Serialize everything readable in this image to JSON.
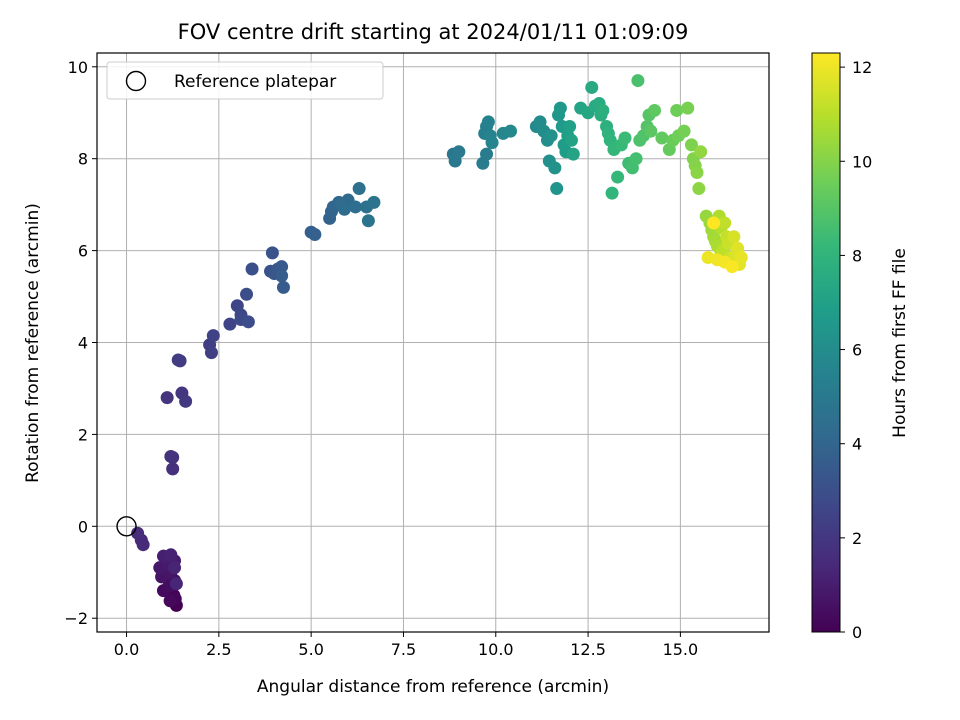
{
  "chart_data": {
    "type": "scatter",
    "title": "FOV centre drift starting at 2024/01/11 01:09:09",
    "xlabel": "Angular distance from reference (arcmin)",
    "ylabel": "Rotation from reference (arcmin)",
    "xlim": [
      -0.8,
      17.4
    ],
    "ylim": [
      -2.3,
      10.3
    ],
    "x_ticks": [
      0.0,
      2.5,
      5.0,
      7.5,
      10.0,
      12.5,
      15.0
    ],
    "x_tick_labels": [
      "0.0",
      "2.5",
      "5.0",
      "7.5",
      "10.0",
      "12.5",
      "15.0"
    ],
    "y_ticks": [
      -2,
      0,
      2,
      4,
      6,
      8,
      10
    ],
    "y_tick_labels": [
      "−2",
      "0",
      "2",
      "4",
      "6",
      "8",
      "10"
    ],
    "grid": true,
    "legend": {
      "position": "upper-left",
      "entries": [
        "Reference platepar"
      ]
    },
    "reference_point": {
      "x": 0.0,
      "y": 0.0
    },
    "colorbar": {
      "label": "Hours from first FF file",
      "range": [
        0,
        12.3
      ],
      "ticks": [
        0,
        2,
        4,
        6,
        8,
        10,
        12
      ],
      "tick_labels": [
        "0",
        "2",
        "4",
        "6",
        "8",
        "10",
        "12"
      ],
      "colormap": "viridis"
    },
    "colormap_stops": [
      "#440154",
      "#482878",
      "#3e4989",
      "#31688e",
      "#26828e",
      "#1f9e89",
      "#35b779",
      "#6ece58",
      "#b5de2b",
      "#fde725"
    ],
    "series": [
      {
        "points": [
          [
            1.35,
            -1.72
          ],
          [
            1.28,
            -1.5
          ],
          [
            1.32,
            -1.58
          ],
          [
            1.18,
            -1.62
          ],
          [
            1.0,
            -1.4
          ],
          [
            1.15,
            -1.3
          ],
          [
            1.3,
            -1.18
          ],
          [
            1.05,
            -1.05
          ],
          [
            0.95,
            -1.1
          ],
          [
            1.2,
            -1.0
          ],
          [
            0.9,
            -0.9
          ],
          [
            1.1,
            -0.8
          ],
          [
            1.3,
            -0.75
          ],
          [
            1.0,
            -0.65
          ],
          [
            1.2,
            -0.62
          ],
          [
            1.3,
            -0.9
          ],
          [
            1.35,
            -1.25
          ],
          [
            0.4,
            -0.3
          ],
          [
            0.45,
            -0.4
          ],
          [
            0.3,
            -0.15
          ],
          [
            1.25,
            1.25
          ],
          [
            1.25,
            1.5
          ],
          [
            1.2,
            1.52
          ],
          [
            1.1,
            2.8
          ],
          [
            1.5,
            2.9
          ],
          [
            1.6,
            2.72
          ],
          [
            1.45,
            3.6
          ],
          [
            1.4,
            3.62
          ],
          [
            2.25,
            3.95
          ],
          [
            2.3,
            3.78
          ],
          [
            2.35,
            4.15
          ],
          [
            2.8,
            4.4
          ],
          [
            3.0,
            4.8
          ],
          [
            3.1,
            4.6
          ],
          [
            3.1,
            4.5
          ],
          [
            3.3,
            4.45
          ],
          [
            3.25,
            5.05
          ],
          [
            3.4,
            5.6
          ],
          [
            3.9,
            5.55
          ],
          [
            3.95,
            5.95
          ],
          [
            4.0,
            5.5
          ],
          [
            4.1,
            5.6
          ],
          [
            4.2,
            5.65
          ],
          [
            4.25,
            5.2
          ],
          [
            4.2,
            5.45
          ],
          [
            5.0,
            6.4
          ],
          [
            5.1,
            6.35
          ],
          [
            5.5,
            6.7
          ],
          [
            5.55,
            6.85
          ],
          [
            5.6,
            6.95
          ],
          [
            5.75,
            7.05
          ],
          [
            5.8,
            7.0
          ],
          [
            6.0,
            7.1
          ],
          [
            5.9,
            6.9
          ],
          [
            6.2,
            6.95
          ],
          [
            6.3,
            7.35
          ],
          [
            6.5,
            6.95
          ],
          [
            6.55,
            6.65
          ],
          [
            6.7,
            7.05
          ],
          [
            8.85,
            8.1
          ],
          [
            8.9,
            7.95
          ],
          [
            9.0,
            8.15
          ],
          [
            9.65,
            7.9
          ],
          [
            9.75,
            8.1
          ],
          [
            9.7,
            8.55
          ],
          [
            9.75,
            8.7
          ],
          [
            9.8,
            8.8
          ],
          [
            9.85,
            8.5
          ],
          [
            9.9,
            8.35
          ],
          [
            10.2,
            8.55
          ],
          [
            10.4,
            8.6
          ],
          [
            11.1,
            8.7
          ],
          [
            11.2,
            8.8
          ],
          [
            11.3,
            8.6
          ],
          [
            11.4,
            8.4
          ],
          [
            11.45,
            7.95
          ],
          [
            11.5,
            8.5
          ],
          [
            11.6,
            7.8
          ],
          [
            11.65,
            7.35
          ],
          [
            11.7,
            8.95
          ],
          [
            11.75,
            9.1
          ],
          [
            11.8,
            8.7
          ],
          [
            11.85,
            8.3
          ],
          [
            11.9,
            8.15
          ],
          [
            11.95,
            8.5
          ],
          [
            12.0,
            8.7
          ],
          [
            12.05,
            8.4
          ],
          [
            12.1,
            8.1
          ],
          [
            12.3,
            9.1
          ],
          [
            12.5,
            9.0
          ],
          [
            12.6,
            9.55
          ],
          [
            12.7,
            9.15
          ],
          [
            12.8,
            9.2
          ],
          [
            12.85,
            8.95
          ],
          [
            12.9,
            9.05
          ],
          [
            13.0,
            8.7
          ],
          [
            13.05,
            8.55
          ],
          [
            13.1,
            8.4
          ],
          [
            13.15,
            7.25
          ],
          [
            13.2,
            8.2
          ],
          [
            13.3,
            7.6
          ],
          [
            13.4,
            8.3
          ],
          [
            13.5,
            8.45
          ],
          [
            13.6,
            7.9
          ],
          [
            13.7,
            7.8
          ],
          [
            13.8,
            8.0
          ],
          [
            13.85,
            9.7
          ],
          [
            13.9,
            8.4
          ],
          [
            14.0,
            8.5
          ],
          [
            14.1,
            8.7
          ],
          [
            14.15,
            8.95
          ],
          [
            14.2,
            8.6
          ],
          [
            14.3,
            9.05
          ],
          [
            14.5,
            8.45
          ],
          [
            14.7,
            8.2
          ],
          [
            14.8,
            8.4
          ],
          [
            14.9,
            9.05
          ],
          [
            14.95,
            8.5
          ],
          [
            15.1,
            8.6
          ],
          [
            15.2,
            9.1
          ],
          [
            15.3,
            8.3
          ],
          [
            15.35,
            8.0
          ],
          [
            15.4,
            7.85
          ],
          [
            15.45,
            7.7
          ],
          [
            15.5,
            7.35
          ],
          [
            15.55,
            8.15
          ],
          [
            15.7,
            6.75
          ],
          [
            15.8,
            6.6
          ],
          [
            15.85,
            6.45
          ],
          [
            15.9,
            6.3
          ],
          [
            15.95,
            6.2
          ],
          [
            16.0,
            6.1
          ],
          [
            16.05,
            6.75
          ],
          [
            16.1,
            6.5
          ],
          [
            16.1,
            5.95
          ],
          [
            16.15,
            6.0
          ],
          [
            16.2,
            6.6
          ],
          [
            16.25,
            6.3
          ],
          [
            16.3,
            6.15
          ],
          [
            16.35,
            5.85
          ],
          [
            16.4,
            5.75
          ],
          [
            16.45,
            6.3
          ],
          [
            16.5,
            5.9
          ],
          [
            16.55,
            6.05
          ],
          [
            16.6,
            5.7
          ],
          [
            16.65,
            5.85
          ],
          [
            15.75,
            5.85
          ],
          [
            16.0,
            5.8
          ],
          [
            16.2,
            5.75
          ],
          [
            16.4,
            5.65
          ],
          [
            15.9,
            6.6
          ]
        ]
      }
    ]
  }
}
